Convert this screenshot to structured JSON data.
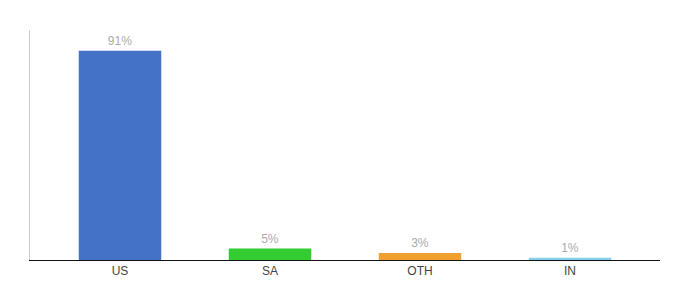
{
  "chart_data": {
    "type": "bar",
    "categories": [
      "US",
      "SA",
      "OTH",
      "IN"
    ],
    "values": [
      91,
      5,
      3,
      1
    ],
    "value_labels": [
      "91%",
      "5%",
      "3%",
      "1%"
    ],
    "colors": [
      "#4472c4",
      "#33cc33",
      "#f0a030",
      "#87ceeb"
    ],
    "ylim": [
      0,
      100
    ],
    "data_labels": true,
    "grid": false,
    "tick_labels": "x"
  }
}
